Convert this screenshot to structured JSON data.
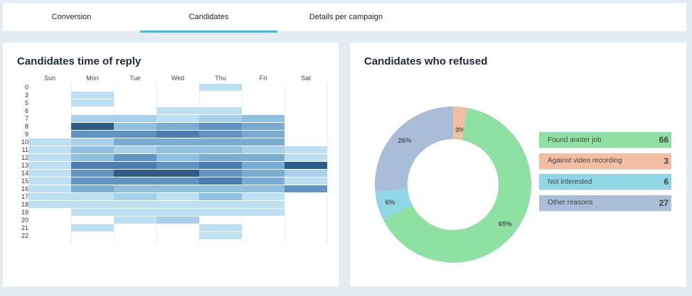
{
  "tabs": [
    {
      "label": "Conversion",
      "active": false
    },
    {
      "label": "Candidates",
      "active": true
    },
    {
      "label": "Details per campaign",
      "active": false
    }
  ],
  "colors": {
    "background": "#e4ecf3",
    "tab_underline": "#3bbdec",
    "heat_levels": [
      "#ffffff",
      "#bcdff2",
      "#a8d0ea",
      "#90bfe0",
      "#7aabd3",
      "#6294c3",
      "#4d7cae",
      "#2f5b88"
    ]
  },
  "chart_data": [
    {
      "type": "heatmap",
      "title": "Candidates time of reply",
      "x_labels": [
        "Sun",
        "Mon",
        "Tue",
        "Wed",
        "Thu",
        "Fri",
        "Sat"
      ],
      "y_labels": [
        "0",
        "3",
        "5",
        "6",
        "7",
        "8",
        "9",
        "10",
        "11",
        "12",
        "13",
        "14",
        "15",
        "16",
        "17",
        "18",
        "19",
        "20",
        "21",
        "22"
      ],
      "value_scale": "relative intensity 0-7",
      "values": [
        [
          0,
          0,
          0,
          0,
          1,
          0,
          0
        ],
        [
          0,
          1,
          0,
          0,
          0,
          0,
          0
        ],
        [
          0,
          1,
          0,
          0,
          0,
          0,
          0
        ],
        [
          0,
          0,
          0,
          1,
          1,
          0,
          0
        ],
        [
          0,
          2,
          2,
          1,
          2,
          3,
          0
        ],
        [
          0,
          7,
          3,
          4,
          5,
          4,
          0
        ],
        [
          0,
          5,
          5,
          6,
          5,
          4,
          0
        ],
        [
          1,
          2,
          4,
          4,
          4,
          4,
          0
        ],
        [
          1,
          3,
          2,
          3,
          3,
          2,
          1
        ],
        [
          1,
          3,
          5,
          3,
          4,
          4,
          1
        ],
        [
          1,
          6,
          6,
          5,
          6,
          4,
          7
        ],
        [
          1,
          5,
          7,
          7,
          5,
          4,
          2
        ],
        [
          1,
          5,
          5,
          5,
          6,
          4,
          1
        ],
        [
          1,
          4,
          3,
          3,
          3,
          3,
          5
        ],
        [
          1,
          1,
          2,
          1,
          3,
          1,
          0
        ],
        [
          1,
          1,
          1,
          1,
          1,
          1,
          0
        ],
        [
          0,
          1,
          1,
          1,
          1,
          1,
          0
        ],
        [
          0,
          0,
          1,
          2,
          0,
          0,
          0
        ],
        [
          0,
          1,
          0,
          0,
          1,
          0,
          0
        ],
        [
          0,
          0,
          0,
          0,
          1,
          0,
          0
        ]
      ]
    },
    {
      "type": "pie",
      "title": "Candidates who refused",
      "donut": true,
      "slices": [
        {
          "label": "Against video recording",
          "value": 3,
          "percent_label": "3%",
          "color": "#f2bea4"
        },
        {
          "label": "Found anoter job",
          "value": 66,
          "percent_label": "65%",
          "color": "#8fe0a3"
        },
        {
          "label": "Not interested",
          "value": 6,
          "percent_label": "6%",
          "color": "#8fd6e6"
        },
        {
          "label": "Other reasons",
          "value": 27,
          "percent_label": "26%",
          "color": "#a9bcd8"
        }
      ],
      "legend": [
        {
          "label": "Found anoter job",
          "value": "66",
          "color": "#8fe0a3"
        },
        {
          "label": "Against video recording",
          "value": "3",
          "color": "#f2bea4"
        },
        {
          "label": "Not interested",
          "value": "6",
          "color": "#8fd6e6"
        },
        {
          "label": "Other reasons",
          "value": "27",
          "color": "#a9bcd8"
        }
      ],
      "legend_position": "right"
    }
  ]
}
